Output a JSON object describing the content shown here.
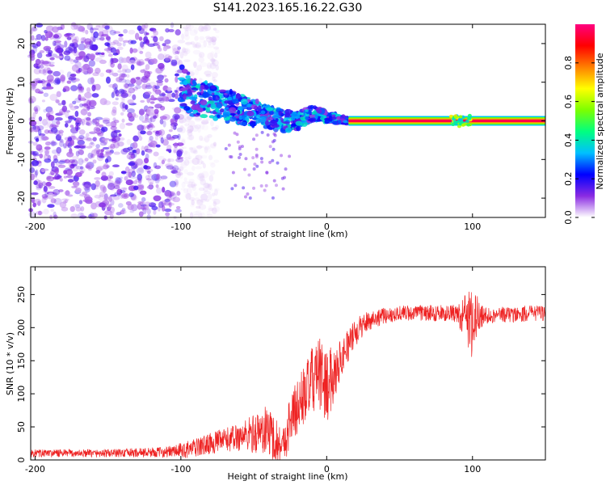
{
  "title": "S141.2023.165.16.22.G30",
  "chart_data": [
    {
      "type": "heatmap",
      "xlabel": "Height of straight line (km)",
      "ylabel": "Frequency (Hz)",
      "xlim": [
        -203,
        150
      ],
      "ylim": [
        -25,
        25
      ],
      "x_ticks": [
        -200,
        -100,
        0,
        100
      ],
      "y_ticks": [
        -20,
        -10,
        0,
        10,
        20
      ],
      "colorbar": {
        "label": "Normalized spectral amplitude",
        "range": [
          0,
          1
        ],
        "ticks": [
          0.0,
          0.2,
          0.4,
          0.6,
          0.8
        ],
        "tick_labels": [
          "0.0",
          "0.2",
          "0.4",
          "0.6",
          "0.8"
        ],
        "colormap": [
          "#ffffff",
          "#8a2be2",
          "#0000ff",
          "#00bfff",
          "#00ff80",
          "#7cff00",
          "#ffff00",
          "#ff8000",
          "#ff0000",
          "#ff0080"
        ]
      },
      "features": [
        {
          "name": "background noise",
          "x_range": [
            -203,
            -100
          ],
          "frequency_range": [
            -25,
            25
          ],
          "amplitude": 0.05
        },
        {
          "name": "emerging signal",
          "x_range": [
            -100,
            15
          ],
          "frequency_path": [
            [
              -100,
              9
            ],
            [
              -90,
              6
            ],
            [
              -80,
              5
            ],
            [
              -70,
              4
            ],
            [
              -60,
              3
            ],
            [
              -50,
              2
            ],
            [
              -40,
              1
            ],
            [
              -30,
              0
            ],
            [
              -20,
              0
            ],
            [
              -10,
              2
            ],
            [
              0,
              1
            ],
            [
              15,
              0
            ]
          ],
          "amplitude": 0.3
        },
        {
          "name": "steady line",
          "x_range": [
            15,
            150
          ],
          "frequency": 0,
          "amplitude": 0.95
        }
      ]
    },
    {
      "type": "line",
      "xlabel": "Height of straight line (km)",
      "ylabel": "SNR (10 * v/v)",
      "xlim": [
        -203,
        150
      ],
      "ylim": [
        0,
        292
      ],
      "x_ticks": [
        -200,
        -100,
        0,
        100
      ],
      "y_ticks": [
        0,
        50,
        100,
        150,
        200,
        250
      ],
      "color": "#ee2222",
      "envelope": {
        "x": [
          -203,
          -150,
          -110,
          -100,
          -90,
          -80,
          -70,
          -60,
          -50,
          -40,
          -35,
          -30,
          -25,
          -20,
          -15,
          -10,
          -5,
          0,
          5,
          10,
          15,
          20,
          25,
          30,
          40,
          50,
          60,
          70,
          80,
          90,
          95,
          100,
          105,
          110,
          120,
          130,
          140,
          150
        ],
        "mean": [
          10,
          10,
          12,
          14,
          18,
          25,
          30,
          35,
          40,
          45,
          30,
          20,
          60,
          80,
          100,
          120,
          130,
          110,
          130,
          155,
          175,
          192,
          205,
          212,
          218,
          222,
          222,
          222,
          222,
          220,
          215,
          210,
          218,
          218,
          220,
          220,
          222,
          222
        ],
        "spread": [
          6,
          6,
          8,
          12,
          14,
          16,
          18,
          22,
          30,
          40,
          35,
          30,
          40,
          45,
          45,
          50,
          55,
          60,
          40,
          30,
          25,
          20,
          18,
          15,
          12,
          12,
          12,
          12,
          12,
          15,
          35,
          60,
          20,
          12,
          12,
          12,
          12,
          12
        ]
      }
    }
  ]
}
